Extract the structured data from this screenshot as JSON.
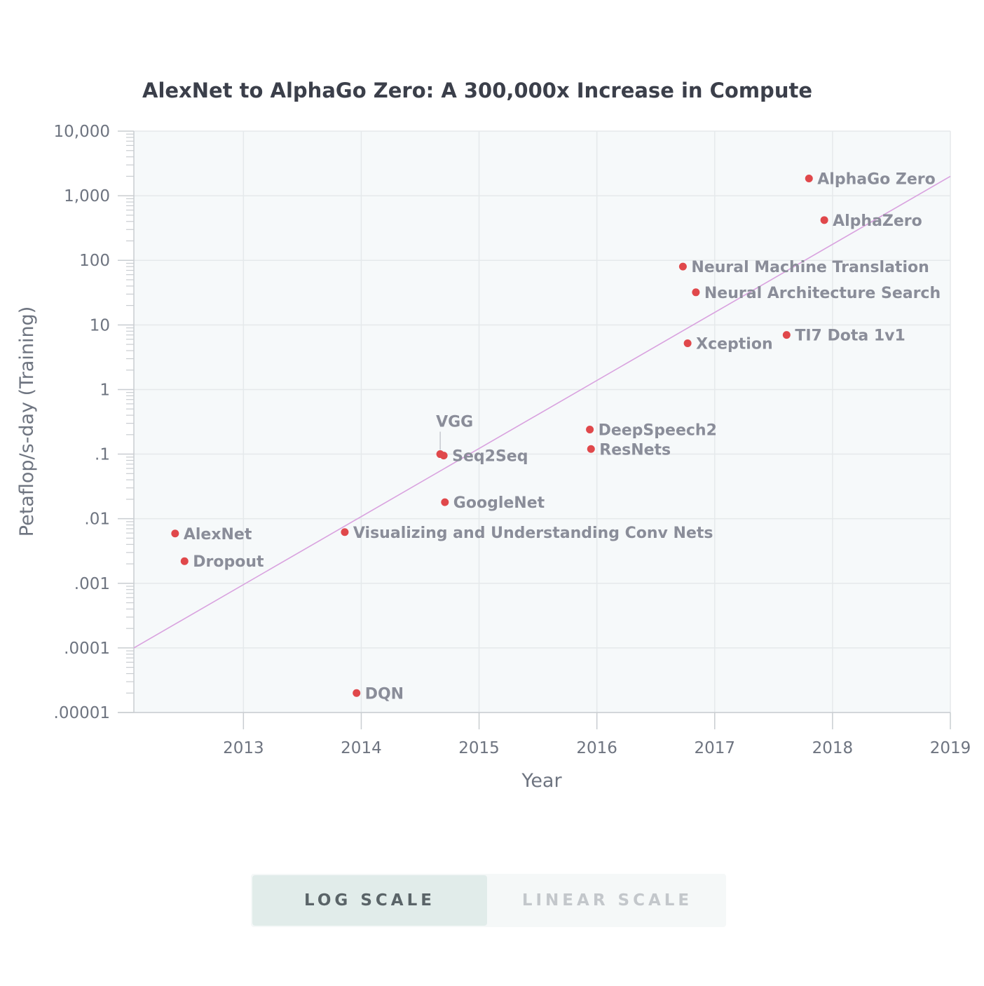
{
  "chart_data": {
    "type": "scatter",
    "title": "AlexNet to AlphaGo Zero: A 300,000x Increase in Compute",
    "xlabel": "Year",
    "ylabel": "Petaflop/s-day (Training)",
    "y_scale": "log",
    "xlim": [
      2012.07,
      2019.0
    ],
    "ylim": [
      1e-05,
      10000
    ],
    "grid": true,
    "x_ticks": [
      {
        "value": 2013,
        "label": "2013"
      },
      {
        "value": 2014,
        "label": "2014"
      },
      {
        "value": 2015,
        "label": "2015"
      },
      {
        "value": 2016,
        "label": "2016"
      },
      {
        "value": 2017,
        "label": "2017"
      },
      {
        "value": 2018,
        "label": "2018"
      },
      {
        "value": 2019,
        "label": "2019"
      }
    ],
    "y_ticks": [
      {
        "value": 10000,
        "label": "10,000"
      },
      {
        "value": 1000,
        "label": "1,000"
      },
      {
        "value": 100,
        "label": "100"
      },
      {
        "value": 10,
        "label": "10"
      },
      {
        "value": 1,
        "label": "1"
      },
      {
        "value": 0.1,
        "label": ".1"
      },
      {
        "value": 0.01,
        "label": ".01"
      },
      {
        "value": 0.001,
        "label": ".001"
      },
      {
        "value": 0.0001,
        "label": ".0001"
      },
      {
        "value": 1e-05,
        "label": ".00001"
      }
    ],
    "point_color": "#e0484b",
    "trend_color": "#d9a2df",
    "trend_line": [
      {
        "x": 2012.07,
        "y": 0.0001
      },
      {
        "x": 2019.0,
        "y": 2000
      }
    ],
    "points": [
      {
        "label": "AlexNet",
        "x": 2012.42,
        "y": 0.0059,
        "label_pos": "right"
      },
      {
        "label": "Dropout",
        "x": 2012.5,
        "y": 0.0022,
        "label_pos": "right"
      },
      {
        "label": "Visualizing and Understanding Conv Nets",
        "x": 2013.86,
        "y": 0.0062,
        "label_pos": "right"
      },
      {
        "label": "DQN",
        "x": 2013.96,
        "y": 2e-05,
        "label_pos": "right"
      },
      {
        "label": "VGG",
        "x": 2014.67,
        "y": 0.1,
        "label_pos": "above"
      },
      {
        "label": "Seq2Seq",
        "x": 2014.7,
        "y": 0.095,
        "label_pos": "right"
      },
      {
        "label": "GoogleNet",
        "x": 2014.71,
        "y": 0.018,
        "label_pos": "right"
      },
      {
        "label": "DeepSpeech2",
        "x": 2015.94,
        "y": 0.24,
        "label_pos": "right"
      },
      {
        "label": "ResNets",
        "x": 2015.95,
        "y": 0.12,
        "label_pos": "right"
      },
      {
        "label": "Neural Machine Translation",
        "x": 2016.73,
        "y": 80,
        "label_pos": "right"
      },
      {
        "label": "Neural Architecture Search",
        "x": 2016.84,
        "y": 32,
        "label_pos": "right"
      },
      {
        "label": "Xception",
        "x": 2016.77,
        "y": 5.2,
        "label_pos": "right"
      },
      {
        "label": "TI7 Dota 1v1",
        "x": 2017.61,
        "y": 7.0,
        "label_pos": "right"
      },
      {
        "label": "AlphaGo Zero",
        "x": 2017.8,
        "y": 1850,
        "label_pos": "right"
      },
      {
        "label": "AlphaZero",
        "x": 2017.93,
        "y": 420,
        "label_pos": "right"
      }
    ]
  },
  "controls": {
    "log_scale_label": "LOG SCALE",
    "linear_scale_label": "LINEAR SCALE",
    "selected": "log"
  }
}
